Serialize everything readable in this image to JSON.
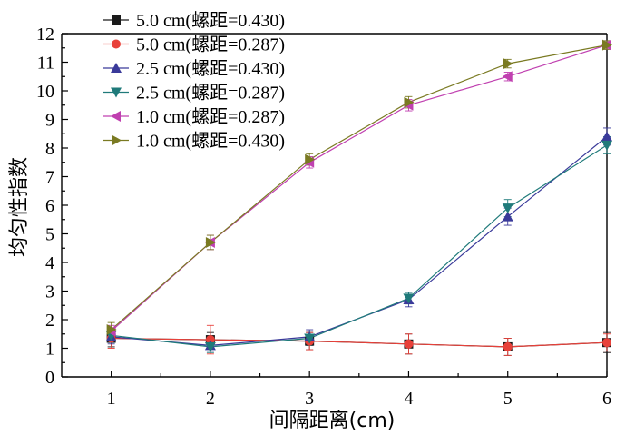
{
  "chart_data": {
    "type": "line",
    "title": "",
    "xlabel": "间隔距离(cm)",
    "ylabel": "均匀性指数",
    "x": [
      1,
      2,
      3,
      4,
      5,
      6
    ],
    "xlim": [
      0.5,
      6
    ],
    "ylim": [
      0,
      12
    ],
    "xticks": [
      "1",
      "2",
      "3",
      "4",
      "5",
      "6"
    ],
    "yticks": [
      "0",
      "1",
      "2",
      "3",
      "4",
      "5",
      "6",
      "7",
      "8",
      "9",
      "10",
      "11",
      "12"
    ],
    "grid": false,
    "legend_position": "top-left",
    "series": [
      {
        "name": "5.0 cm(螺距=0.430)",
        "marker": "square",
        "color": "#1a1a1a",
        "values": [
          1.35,
          1.3,
          1.25,
          1.15,
          1.05,
          1.2
        ],
        "errors": [
          0.3,
          0.25,
          0.3,
          0.35,
          0.3,
          0.35
        ]
      },
      {
        "name": "5.0 cm(螺距=0.287)",
        "marker": "circle",
        "color": "#e8413a",
        "values": [
          1.35,
          1.3,
          1.25,
          1.15,
          1.05,
          1.2
        ],
        "errors": [
          0.35,
          0.5,
          0.3,
          0.35,
          0.3,
          0.3
        ]
      },
      {
        "name": "2.5 cm(螺距=0.430)",
        "marker": "triangle-up",
        "color": "#3a3a9a",
        "values": [
          1.4,
          1.1,
          1.4,
          2.7,
          5.6,
          8.4
        ],
        "errors": [
          0.25,
          0.2,
          0.25,
          0.25,
          0.3,
          0.3
        ]
      },
      {
        "name": "2.5 cm(螺距=0.287)",
        "marker": "triangle-down",
        "color": "#1f7a7a",
        "values": [
          1.45,
          1.05,
          1.35,
          2.75,
          5.9,
          8.1
        ],
        "errors": [
          0.25,
          0.2,
          0.25,
          0.2,
          0.3,
          0.3
        ]
      },
      {
        "name": "1.0 cm(螺距=0.287)",
        "marker": "triangle-left",
        "color": "#c040b0",
        "values": [
          1.6,
          4.7,
          7.5,
          9.5,
          10.5,
          11.6
        ],
        "errors": [
          0.2,
          0.25,
          0.2,
          0.2,
          0.15,
          0.15
        ]
      },
      {
        "name": "1.0 cm(螺距=0.430)",
        "marker": "triangle-right",
        "color": "#7a7a22",
        "values": [
          1.65,
          4.7,
          7.6,
          9.6,
          10.95,
          11.6
        ],
        "errors": [
          0.25,
          0.25,
          0.2,
          0.2,
          0.15,
          0.15
        ]
      }
    ]
  }
}
